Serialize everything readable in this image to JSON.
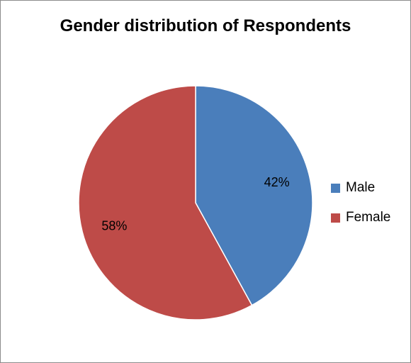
{
  "chart_data": {
    "type": "pie",
    "title": "Gender distribution  of Respondents",
    "slices": [
      {
        "label": "Male",
        "value": 42,
        "display": "42%",
        "color": "#4a7ebb"
      },
      {
        "label": "Female",
        "value": 58,
        "display": "58%",
        "color": "#be4b48"
      }
    ],
    "legend": {
      "placement": "right"
    }
  }
}
